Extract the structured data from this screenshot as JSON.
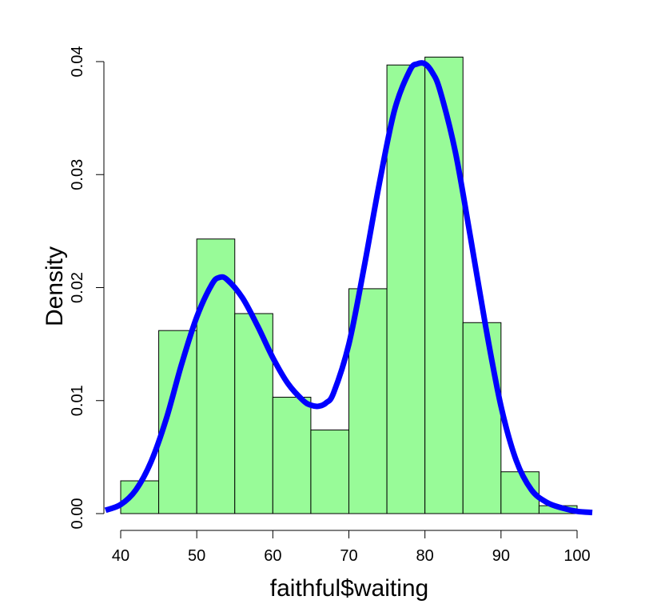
{
  "chart_data": {
    "type": "bar",
    "title": "",
    "xlabel": "faithful$waiting",
    "ylabel": "Density",
    "xlim": [
      38,
      102
    ],
    "ylim": [
      0,
      0.04
    ],
    "xticks": [
      "40",
      "50",
      "60",
      "70",
      "80",
      "90",
      "100"
    ],
    "yticks": [
      "0.00",
      "0.01",
      "0.02",
      "0.03",
      "0.04"
    ],
    "grid": false,
    "legend": "none",
    "bins": [
      {
        "from": 40,
        "to": 45,
        "density": 0.0029
      },
      {
        "from": 45,
        "to": 50,
        "density": 0.0162
      },
      {
        "from": 50,
        "to": 55,
        "density": 0.0243
      },
      {
        "from": 55,
        "to": 60,
        "density": 0.0177
      },
      {
        "from": 60,
        "to": 65,
        "density": 0.0103
      },
      {
        "from": 65,
        "to": 70,
        "density": 0.0074
      },
      {
        "from": 70,
        "to": 75,
        "density": 0.0199
      },
      {
        "from": 75,
        "to": 80,
        "density": 0.0397
      },
      {
        "from": 80,
        "to": 85,
        "density": 0.0404
      },
      {
        "from": 85,
        "to": 90,
        "density": 0.0169
      },
      {
        "from": 90,
        "to": 95,
        "density": 0.0037
      },
      {
        "from": 95,
        "to": 100,
        "density": 0.0007
      }
    ],
    "density_curve": {
      "x": [
        38,
        40,
        42,
        44,
        46,
        48,
        50,
        52,
        53,
        54,
        56,
        58,
        60,
        62,
        64,
        65,
        66,
        67,
        68,
        70,
        72,
        74,
        76,
        78,
        79,
        80,
        81,
        82,
        84,
        86,
        88,
        90,
        92,
        94,
        96,
        98,
        100,
        102
      ],
      "y": [
        0.0003,
        0.0008,
        0.0021,
        0.0046,
        0.0084,
        0.0132,
        0.0174,
        0.0203,
        0.0209,
        0.0207,
        0.0191,
        0.0166,
        0.0138,
        0.0115,
        0.01,
        0.0096,
        0.0095,
        0.0098,
        0.0107,
        0.015,
        0.0218,
        0.0292,
        0.0357,
        0.0392,
        0.0398,
        0.0398,
        0.039,
        0.0374,
        0.032,
        0.0244,
        0.0165,
        0.0095,
        0.0047,
        0.0021,
        0.001,
        0.0005,
        0.0002,
        0.0001
      ]
    },
    "colors": {
      "bar_fill": "#98fb98",
      "bar_stroke": "#000000",
      "curve": "#0000ff"
    }
  }
}
